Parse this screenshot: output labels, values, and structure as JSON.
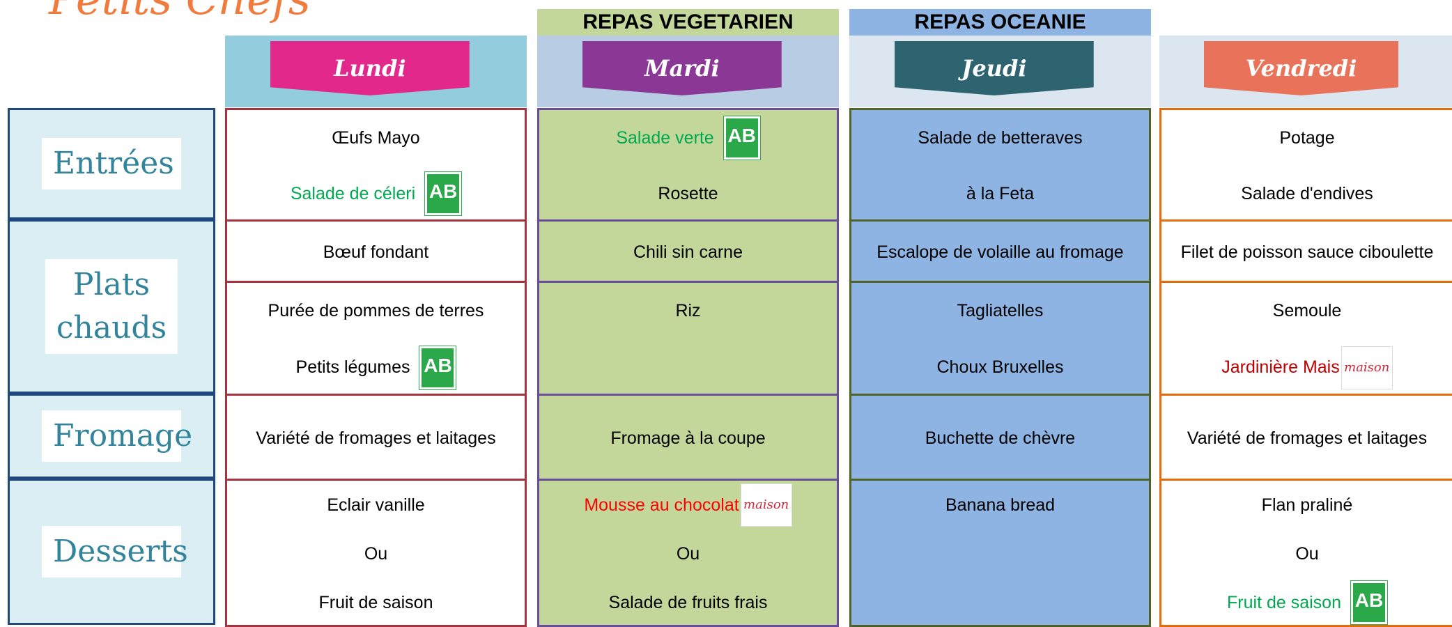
{
  "header": {
    "title": "Petits Chefs"
  },
  "columns": [
    {
      "day": "Lundi",
      "border": "#a8323e",
      "background": "#ffffff",
      "header_background": "#93cddd",
      "banner": "#e2288a"
    },
    {
      "day": "Mardi",
      "theme": "REPAS VEGETARIEN",
      "theme_background": "#c4d79b",
      "border": "#6a4c9c",
      "background": "#c4d79b",
      "header_background": "#b8cce4",
      "banner": "#8a3796"
    },
    {
      "day": "Jeudi",
      "theme": "REPAS OCEANIE",
      "theme_background": "#8db4e2",
      "border": "#4f6228",
      "background": "#8db4e2",
      "header_background": "#dce6f1",
      "banner": "#2d6470"
    },
    {
      "day": "Vendredi",
      "border": "#e46c0a",
      "background": "#ffffff",
      "header_background": "#dce6f1",
      "banner": "#e8735a"
    }
  ],
  "rows": [
    {
      "label": "Entrées",
      "cells": [
        [
          {
            "text": "Œufs Mayo"
          },
          {
            "text": "Salade de céleri",
            "color": "#00a94f",
            "badge": "AB"
          }
        ],
        [
          {
            "text": "Salade verte",
            "color": "#00a94f",
            "badge": "AB"
          },
          {
            "text": "Rosette"
          }
        ],
        [
          {
            "text": "Salade de betteraves"
          },
          {
            "text": "à la Feta"
          }
        ],
        [
          {
            "text": "Potage"
          },
          {
            "text": "Salade d'endives"
          }
        ]
      ]
    },
    {
      "label": "Plats chauds",
      "cells": [
        [
          {
            "text": "Bœuf fondant"
          }
        ],
        [
          {
            "text": "Chili sin carne"
          }
        ],
        [
          {
            "text": "Escalope de volaille au fromage"
          }
        ],
        [
          {
            "text": "Filet de poisson sauce ciboulette"
          }
        ]
      ]
    },
    {
      "cells": [
        [
          {
            "text": "Purée de pommes de terres"
          },
          {
            "text": "Petits légumes",
            "badge": "AB"
          }
        ],
        [
          {
            "text": "Riz"
          }
        ],
        [
          {
            "text": "Tagliatelles"
          },
          {
            "text": "Choux Bruxelles"
          }
        ],
        [
          {
            "text": "Semoule"
          },
          {
            "text": "Jardinière Mais",
            "color": "#c00000",
            "badge": "maison"
          }
        ]
      ]
    },
    {
      "label": "Fromage",
      "cells": [
        [
          {
            "text": "Variété de fromages et laitages"
          }
        ],
        [
          {
            "text": "Fromage à la coupe"
          }
        ],
        [
          {
            "text": "Buchette de chèvre"
          }
        ],
        [
          {
            "text": "Variété de fromages et laitages"
          }
        ]
      ]
    },
    {
      "label": "Desserts",
      "cells": [
        [
          {
            "text": "Eclair vanille"
          },
          {
            "text": "Ou"
          },
          {
            "text": "Fruit de saison"
          }
        ],
        [
          {
            "text": "Mousse au chocolat",
            "color": "#ff0000",
            "badge": "maison"
          },
          {
            "text": "Ou"
          },
          {
            "text": "Salade de fruits frais"
          }
        ],
        [
          {
            "text": "Banana bread"
          }
        ],
        [
          {
            "text": "Flan praliné"
          },
          {
            "text": "Ou"
          },
          {
            "text": "Fruit de saison",
            "color": "#00a94f",
            "badge": "AB"
          }
        ]
      ]
    }
  ]
}
